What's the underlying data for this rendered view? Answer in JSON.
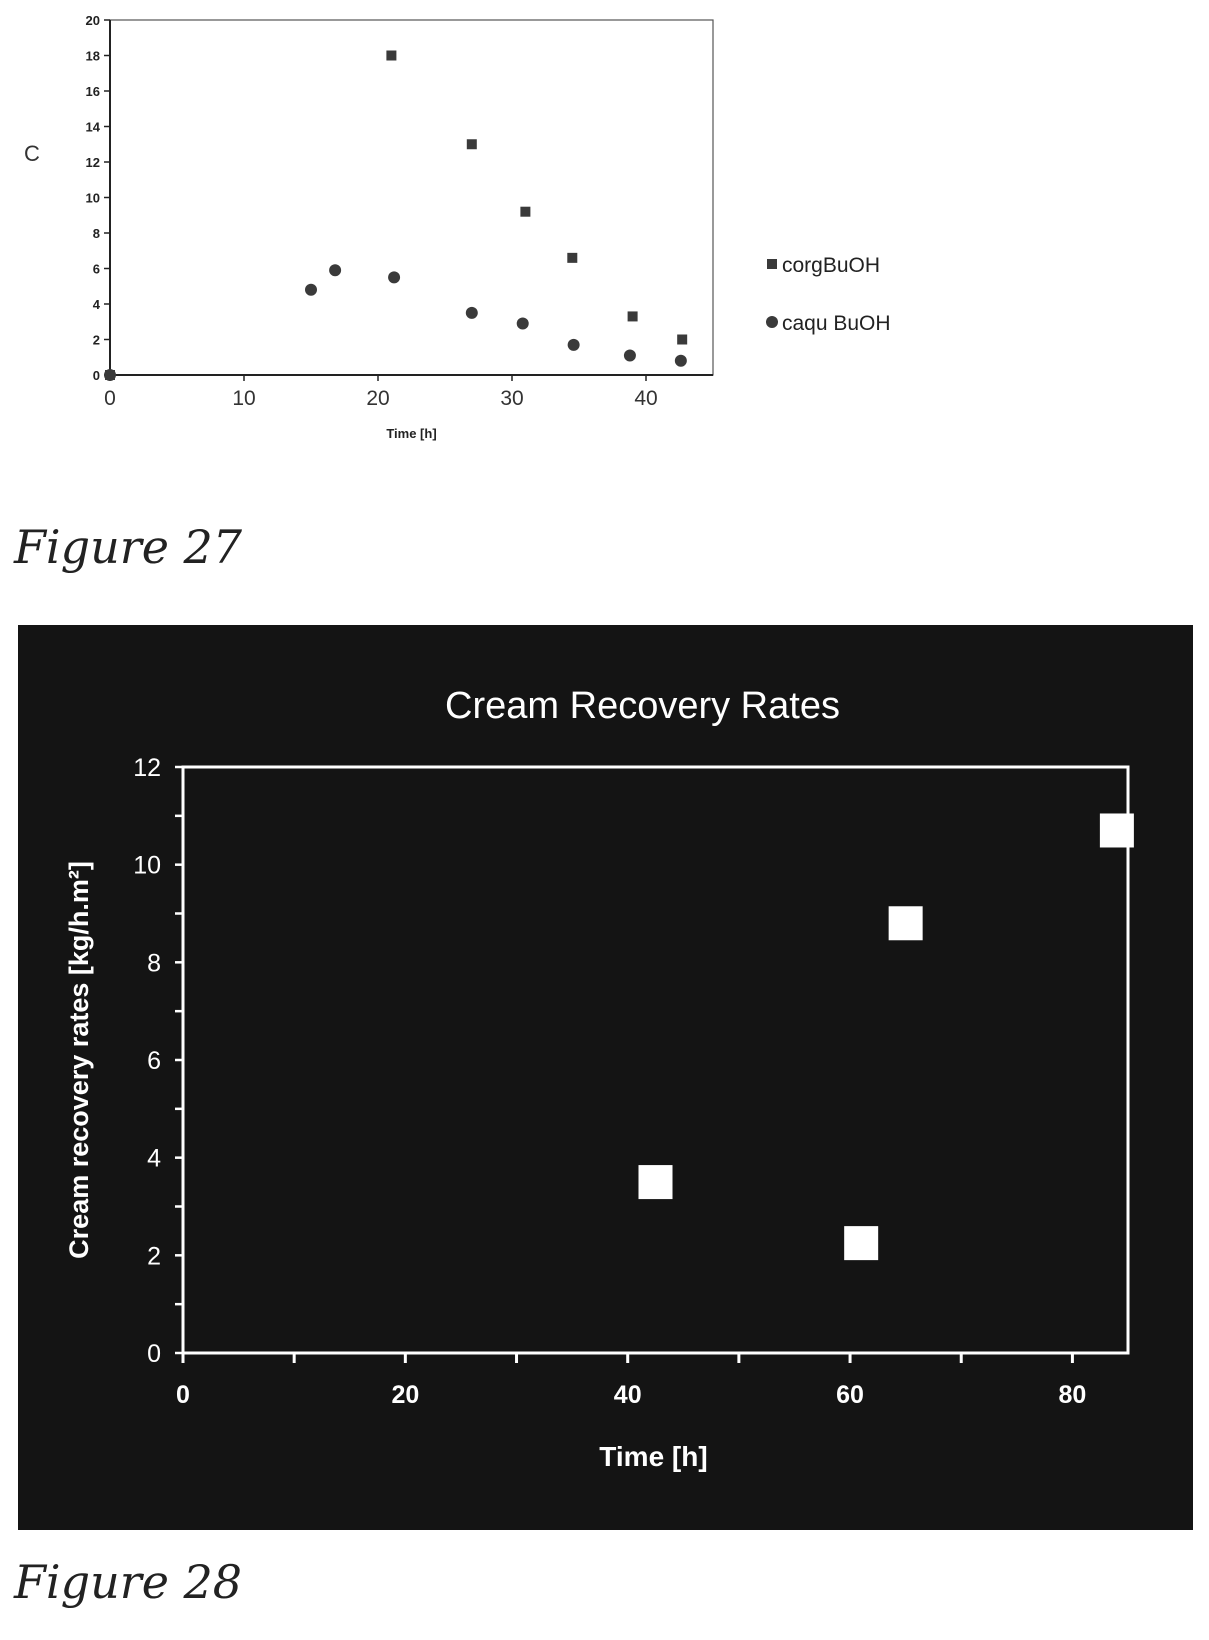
{
  "figures": [
    {
      "caption": "Figure 27"
    },
    {
      "caption": "Figure 28"
    }
  ],
  "chart_data": [
    {
      "type": "scatter",
      "title": "",
      "xlabel": "Time [h]",
      "ylabel": "C",
      "xlim": [
        0,
        45
      ],
      "ylim": [
        0,
        20
      ],
      "xticks": [
        0,
        10,
        20,
        30,
        40
      ],
      "yticks": [
        0,
        2,
        4,
        6,
        8,
        10,
        12,
        14,
        16,
        18,
        20
      ],
      "legend_position": "right",
      "series": [
        {
          "name": "corgBuOH",
          "marker": "square",
          "color": "#3a3a3a",
          "x": [
            0,
            21,
            27,
            31,
            34.5,
            39,
            42.7
          ],
          "y": [
            0,
            18,
            13,
            9.2,
            6.6,
            3.3,
            2
          ]
        },
        {
          "name": "caqu BuOH",
          "marker": "circle",
          "color": "#3a3a3a",
          "x": [
            0,
            15,
            16.8,
            21.2,
            27,
            30.8,
            34.6,
            38.8,
            42.6
          ],
          "y": [
            0,
            4.8,
            5.9,
            5.5,
            3.5,
            2.9,
            1.7,
            1.1,
            0.8
          ]
        }
      ]
    },
    {
      "type": "scatter",
      "title": "Cream Recovery Rates",
      "xlabel": "Time [h]",
      "ylabel": "Cream recovery rates [kg/h.m²]",
      "xlim": [
        0,
        85
      ],
      "ylim": [
        0,
        12
      ],
      "xticks": [
        0,
        20,
        40,
        60,
        80
      ],
      "yticks": [
        0,
        2,
        4,
        6,
        8,
        10,
        12
      ],
      "background": "#141414",
      "foreground": "#ffffff",
      "series": [
        {
          "marker": "square",
          "color": "#ffffff",
          "x": [
            42.5,
            61,
            65,
            84
          ],
          "y": [
            3.5,
            2.25,
            8.8,
            10.7
          ]
        }
      ]
    }
  ]
}
